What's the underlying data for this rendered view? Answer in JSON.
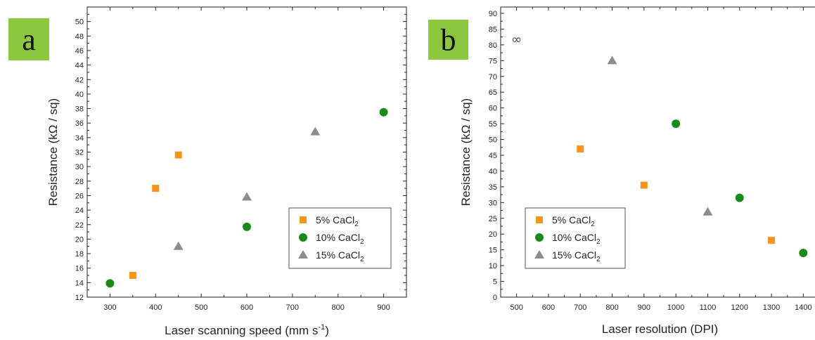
{
  "chart_data": [
    {
      "type": "scatter",
      "panel_label": "a",
      "xlabel": "Laser scanning speed (mm s",
      "xlabel_sup": "-1",
      "xlabel_tail": ")",
      "ylabel": "Resistance (kΩ / sq)",
      "xlim": [
        250,
        950
      ],
      "ylim": [
        12,
        52
      ],
      "xticks": [
        300,
        400,
        500,
        600,
        700,
        800,
        900
      ],
      "yticks": [
        12,
        14,
        16,
        18,
        20,
        22,
        24,
        26,
        28,
        30,
        32,
        34,
        36,
        38,
        40,
        42,
        44,
        46,
        48,
        50
      ],
      "legend_position": "bottom-right",
      "series": [
        {
          "name": "5% CaCl",
          "name_sub": "2",
          "marker": "square",
          "color": "#f7941d",
          "points": [
            [
              350,
              15.0
            ],
            [
              400,
              27.0
            ],
            [
              450,
              31.6
            ]
          ]
        },
        {
          "name": "10% CaCl",
          "name_sub": "2",
          "marker": "circle",
          "color": "#1a8a1a",
          "points": [
            [
              300,
              13.9
            ],
            [
              600,
              21.7
            ],
            [
              900,
              37.5
            ]
          ]
        },
        {
          "name": "15% CaCl",
          "name_sub": "2",
          "marker": "triangle",
          "color": "#8c8c8c",
          "points": [
            [
              450,
              19.0
            ],
            [
              600,
              25.8
            ],
            [
              750,
              34.8
            ]
          ]
        }
      ]
    },
    {
      "type": "scatter",
      "panel_label": "b",
      "xlabel": "Laser resolution (DPI)",
      "ylabel": "Resistance (kΩ / sq)",
      "xlim": [
        450,
        1450
      ],
      "ylim": [
        0,
        92
      ],
      "xticks": [
        500,
        600,
        700,
        800,
        900,
        1000,
        1100,
        1200,
        1300,
        1400
      ],
      "yticks": [
        0,
        5,
        10,
        15,
        20,
        25,
        30,
        35,
        40,
        45,
        50,
        55,
        60,
        65,
        70,
        75,
        80,
        85,
        90
      ],
      "legend_position": "bottom-left",
      "annotations": [
        {
          "text": "∞",
          "x": 500,
          "y": 81.5
        }
      ],
      "series": [
        {
          "name": "5% CaCl",
          "name_sub": "2",
          "marker": "square",
          "color": "#f7941d",
          "points": [
            [
              700,
              47.0
            ],
            [
              900,
              35.5
            ],
            [
              1300,
              18.0
            ]
          ]
        },
        {
          "name": "10% CaCl",
          "name_sub": "2",
          "marker": "circle",
          "color": "#1a8a1a",
          "points": [
            [
              1000,
              55.0
            ],
            [
              1200,
              31.5
            ],
            [
              1400,
              14.0
            ]
          ]
        },
        {
          "name": "15% CaCl",
          "name_sub": "2",
          "marker": "triangle",
          "color": "#8c8c8c",
          "points": [
            [
              800,
              75.0
            ],
            [
              1100,
              27.0
            ]
          ]
        }
      ]
    }
  ],
  "style": {
    "label_box_color": "#8dc63f",
    "axis_color": "#222222",
    "legend_border_color": "#555555"
  }
}
